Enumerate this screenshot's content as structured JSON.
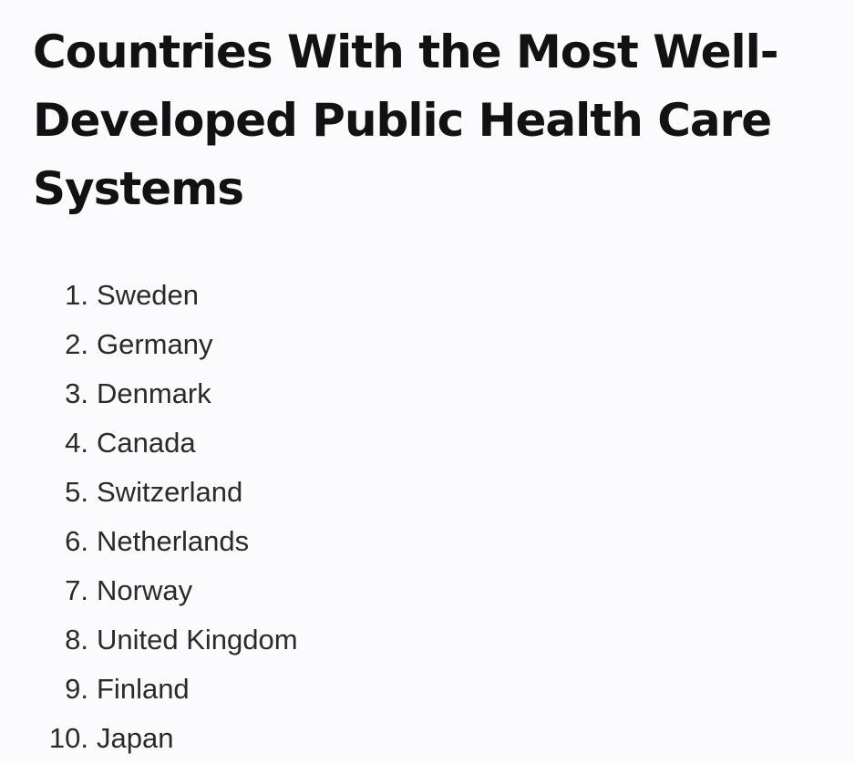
{
  "article": {
    "title": "Countries With the Most Well-Developed Public Health Care Systems",
    "list": [
      {
        "number": "1.",
        "name": "Sweden"
      },
      {
        "number": "2.",
        "name": "Germany"
      },
      {
        "number": "3.",
        "name": "Denmark"
      },
      {
        "number": "4.",
        "name": "Canada"
      },
      {
        "number": "5.",
        "name": "Switzerland"
      },
      {
        "number": "6.",
        "name": "Netherlands"
      },
      {
        "number": "7.",
        "name": "Norway"
      },
      {
        "number": "8.",
        "name": "United Kingdom"
      },
      {
        "number": "9.",
        "name": "Finland"
      },
      {
        "number": "10.",
        "name": "Japan"
      }
    ]
  }
}
